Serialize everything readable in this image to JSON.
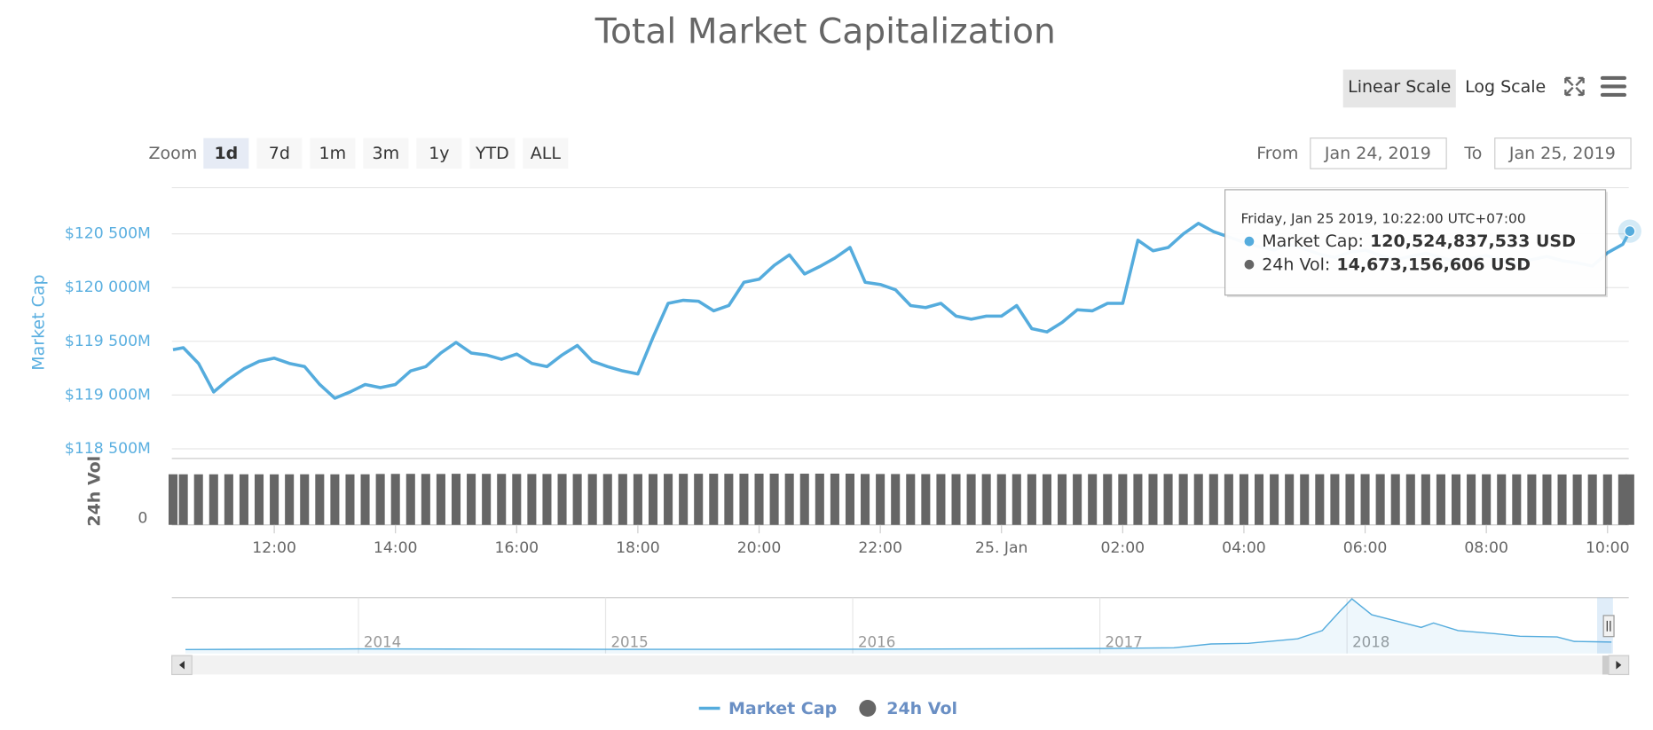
{
  "title": "Total Market Capitalization",
  "scale_buttons": {
    "items": [
      "Linear Scale",
      "Log Scale"
    ],
    "selected": 0
  },
  "range_selector": {
    "label": "Zoom",
    "buttons": [
      "1d",
      "7d",
      "1m",
      "3m",
      "1y",
      "YTD",
      "ALL"
    ],
    "selected": 0,
    "from_label": "From",
    "from": "Jan 24, 2019",
    "to_label": "To",
    "to": "Jan 25, 2019"
  },
  "chart_data": {
    "type": "line",
    "y_label": "Market Cap",
    "y2_label": "24h Vol",
    "x": [
      10.33,
      10.5,
      10.75,
      11,
      11.25,
      11.5,
      11.75,
      12,
      12.25,
      12.5,
      12.75,
      13,
      13.25,
      13.5,
      13.75,
      14,
      14.25,
      14.5,
      14.75,
      15,
      15.25,
      15.5,
      15.75,
      16,
      16.25,
      16.5,
      16.75,
      17,
      17.25,
      17.5,
      17.75,
      18,
      18.25,
      18.5,
      18.75,
      19,
      19.25,
      19.5,
      19.75,
      20,
      20.25,
      20.5,
      20.75,
      21,
      21.25,
      21.5,
      21.75,
      22,
      22.25,
      22.5,
      22.75,
      23,
      23.25,
      23.5,
      23.75,
      24,
      24.25,
      24.5,
      24.75,
      25,
      25.25,
      25.5,
      25.75,
      26,
      26.25,
      26.5,
      26.75,
      27,
      27.25,
      27.5,
      27.75,
      28,
      28.25,
      28.5,
      28.75,
      29,
      29.25,
      29.5,
      29.75,
      30,
      30.25,
      30.5,
      30.75,
      31,
      31.25,
      31.5,
      31.75,
      32,
      32.25,
      32.5,
      32.75,
      33,
      33.25,
      33.5,
      33.75,
      34,
      34.25,
      34.367
    ],
    "xlim": [
      10.31,
      34.35
    ],
    "xticks": [
      {
        "value": 12,
        "label": "12:00"
      },
      {
        "value": 14,
        "label": "14:00"
      },
      {
        "value": 16,
        "label": "16:00"
      },
      {
        "value": 18,
        "label": "18:00"
      },
      {
        "value": 20,
        "label": "20:00"
      },
      {
        "value": 22,
        "label": "22:00"
      },
      {
        "value": 24,
        "label": "25. Jan"
      },
      {
        "value": 26,
        "label": "02:00"
      },
      {
        "value": 28,
        "label": "04:00"
      },
      {
        "value": 30,
        "label": "06:00"
      },
      {
        "value": 32,
        "label": "08:00"
      },
      {
        "value": 34,
        "label": "10:00"
      }
    ],
    "ylim": [
      118410,
      120930
    ],
    "yticks": [
      {
        "value": 118500,
        "label": "$118 500M"
      },
      {
        "value": 119000,
        "label": "$119 000M"
      },
      {
        "value": 119500,
        "label": "$119 500M"
      },
      {
        "value": 120000,
        "label": "$120 000M"
      },
      {
        "value": 120500,
        "label": "$120 500M"
      }
    ],
    "y2lim": [
      0,
      19300000000
    ],
    "y2ticks": [
      0
    ],
    "grid": true,
    "legend": "bottom",
    "series": [
      {
        "name": "Market Cap",
        "color": "#55acdd",
        "values": [
          119422,
          119441,
          119294,
          119029,
          119147,
          119245,
          119314,
          119343,
          119294,
          119265,
          119098,
          118971,
          119029,
          119098,
          119069,
          119098,
          119225,
          119265,
          119392,
          119490,
          119392,
          119373,
          119333,
          119382,
          119294,
          119265,
          119373,
          119461,
          119314,
          119265,
          119225,
          119196,
          119539,
          119853,
          119882,
          119873,
          119784,
          119833,
          120049,
          120078,
          120206,
          120304,
          120127,
          120196,
          120275,
          120373,
          120049,
          120029,
          119980,
          119833,
          119814,
          119853,
          119735,
          119706,
          119735,
          119735,
          119833,
          119618,
          119588,
          119676,
          119794,
          119784,
          119853,
          119853,
          120441,
          120343,
          120373,
          120500,
          120598,
          120520,
          120471,
          120420,
          120380,
          120350,
          120400,
          120360,
          120310,
          120280,
          120330,
          120350,
          120300,
          120260,
          120290,
          120320,
          120280,
          120240,
          120270,
          120300,
          120250,
          120220,
          120260,
          120290,
          120250,
          120230,
          120200,
          120324,
          120402,
          120524.84
        ]
      },
      {
        "name": "24h Vol",
        "color": "#666666",
        "type": "bar",
        "axis": "y2",
        "values": [
          14710000000,
          14700000000,
          14690000000,
          14700000000,
          14720000000,
          14710000000,
          14700000000,
          14690000000,
          14700000000,
          14710000000,
          14720000000,
          14700000000,
          14690000000,
          14710000000,
          14800000000,
          14820000000,
          14830000000,
          14810000000,
          14800000000,
          14850000000,
          14840000000,
          14830000000,
          14820000000,
          14800000000,
          14790000000,
          14800000000,
          14810000000,
          14790000000,
          14780000000,
          14790000000,
          14800000000,
          14780000000,
          14790000000,
          14830000000,
          14850000000,
          14860000000,
          14870000000,
          14860000000,
          14870000000,
          14880000000,
          14890000000,
          14900000000,
          14880000000,
          14890000000,
          14900000000,
          14880000000,
          14800000000,
          14790000000,
          14780000000,
          14770000000,
          14760000000,
          14770000000,
          14760000000,
          14750000000,
          14760000000,
          14740000000,
          14750000000,
          14740000000,
          14730000000,
          14740000000,
          14750000000,
          14760000000,
          14770000000,
          14760000000,
          14780000000,
          14790000000,
          14800000000,
          14790000000,
          14780000000,
          14770000000,
          14760000000,
          14750000000,
          14740000000,
          14730000000,
          14740000000,
          14720000000,
          14730000000,
          14760000000,
          14770000000,
          14760000000,
          14750000000,
          14740000000,
          14720000000,
          14710000000,
          14700000000,
          14690000000,
          14700000000,
          14710000000,
          14700000000,
          14690000000,
          14680000000,
          14670000000,
          14660000000,
          14650000000,
          14660000000,
          14670000000,
          14670000000,
          14673156606
        ]
      }
    ],
    "tooltip": {
      "date": "Friday, Jan 25 2019, 10:22:00 UTC+07:00",
      "items": [
        {
          "label": "Market Cap:",
          "value": "120,524,837,533 USD"
        },
        {
          "label": "24h Vol:",
          "value": "14,673,156,606 USD"
        }
      ]
    }
  },
  "navigator": {
    "x": [
      2013.3,
      2013.9,
      2014,
      2014.5,
      2015,
      2015.5,
      2016,
      2016.5,
      2017,
      2017.3,
      2017.45,
      2017.6,
      2017.8,
      2017.9,
      2017.97,
      2018.02,
      2018.1,
      2018.2,
      2018.3,
      2018.35,
      2018.45,
      2018.6,
      2018.7,
      2018.85,
      2018.92,
      2019,
      2019.07
    ],
    "values": [
      1500,
      10000,
      12000,
      8000,
      5000,
      4000,
      7000,
      12000,
      18000,
      30000,
      90000,
      100000,
      170000,
      300000,
      600000,
      800000,
      550000,
      450000,
      350000,
      420000,
      300000,
      250000,
      210000,
      200000,
      130000,
      125000,
      120000
    ],
    "xlim": [
      2013.245,
      2019.14
    ],
    "ylim": [
      -60000,
      820000
    ],
    "xticks": [
      2014,
      2015,
      2016,
      2017,
      2018
    ]
  }
}
